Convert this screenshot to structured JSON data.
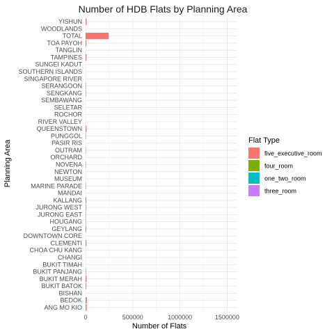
{
  "chart_data": {
    "type": "bar",
    "orientation": "horizontal",
    "title": "Number of HDB Flats by Planning Area",
    "xlabel": "Number of Flats",
    "ylabel": "Planning Area",
    "xlim": [
      0,
      1600000
    ],
    "xticks": [
      0,
      500000,
      1000000,
      1500000
    ],
    "xtick_labels": [
      "0",
      "500000",
      "1000000",
      "1500000"
    ],
    "grid": true,
    "legend": {
      "title": "Flat Type",
      "placement": "right",
      "entries": [
        {
          "name": "five_executive_room",
          "color": "#F8766D"
        },
        {
          "name": "four_room",
          "color": "#7CAE00"
        },
        {
          "name": "one_two_room",
          "color": "#00BFC4"
        },
        {
          "name": "three_room",
          "color": "#C77CFF"
        }
      ]
    },
    "categories": [
      "ANG MO KIO",
      "BEDOK",
      "BISHAN",
      "BUKIT BATOK",
      "BUKIT MERAH",
      "BUKIT PANJANG",
      "BUKIT TIMAH",
      "CHANGI",
      "CHOA CHU KANG",
      "CLEMENTI",
      "DOWNTOWN CORE",
      "GEYLANG",
      "HOUGANG",
      "JURONG EAST",
      "JURONG WEST",
      "KALLANG",
      "MANDAI",
      "MARINE PARADE",
      "MUSEUM",
      "NEWTON",
      "NOVENA",
      "ORCHARD",
      "OUTRAM",
      "PASIR RIS",
      "PUNGGOL",
      "QUEENSTOWN",
      "RIVER VALLEY",
      "ROCHOR",
      "SELETAR",
      "SEMBAWANG",
      "SENGKANG",
      "SERANGOON",
      "SINGAPORE RIVER",
      "SOUTHERN ISLANDS",
      "SUNGEI KADUT",
      "TAMPINES",
      "TANGLIN",
      "TOA PAYOH",
      "TOTAL",
      "WOODLANDS",
      "YISHUN"
    ],
    "series": [
      {
        "name": "five_executive_room",
        "color": "#F8766D",
        "values": [
          12000,
          14000,
          0,
          8000,
          11000,
          4000,
          0,
          0,
          0,
          9000,
          0,
          7000,
          5000,
          4000,
          6000,
          8000,
          0,
          2000,
          0,
          0,
          1000,
          0,
          2000,
          0,
          4000,
          10000,
          0,
          0,
          0,
          0,
          3000,
          4000,
          0,
          0,
          0,
          10000,
          0,
          9000,
          245000,
          0,
          11000
        ]
      }
    ]
  }
}
